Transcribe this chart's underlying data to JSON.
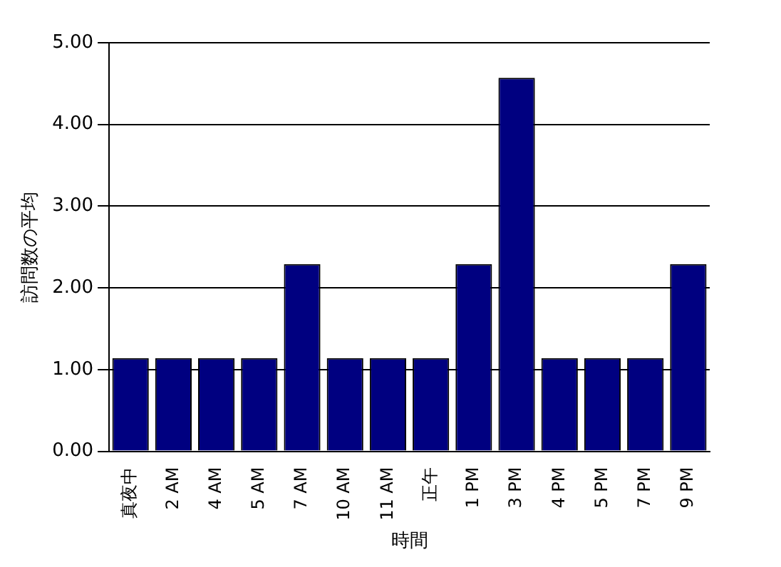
{
  "chart_data": {
    "type": "bar",
    "xlabel": "時間",
    "ylabel": "訪問数の平均",
    "categories": [
      "真夜中",
      "2 AM",
      "4 AM",
      "5 AM",
      "7 AM",
      "10 AM",
      "11 AM",
      "正午",
      "1 PM",
      "3 PM",
      "4 PM",
      "5 PM",
      "7 PM",
      "9 PM"
    ],
    "values": [
      1.14,
      1.14,
      1.14,
      1.14,
      2.29,
      1.14,
      1.14,
      1.14,
      2.29,
      4.57,
      1.14,
      1.14,
      1.14,
      2.29
    ],
    "color": "#000080",
    "ylim": [
      0,
      5
    ],
    "yticks": [
      {
        "value": 0,
        "label": "0.00"
      },
      {
        "value": 1,
        "label": "1.00"
      },
      {
        "value": 2,
        "label": "2.00"
      },
      {
        "value": 3,
        "label": "3.00"
      },
      {
        "value": 4,
        "label": "4.00"
      },
      {
        "value": 5,
        "label": "5.00"
      }
    ],
    "grid": "y",
    "legend": false
  }
}
